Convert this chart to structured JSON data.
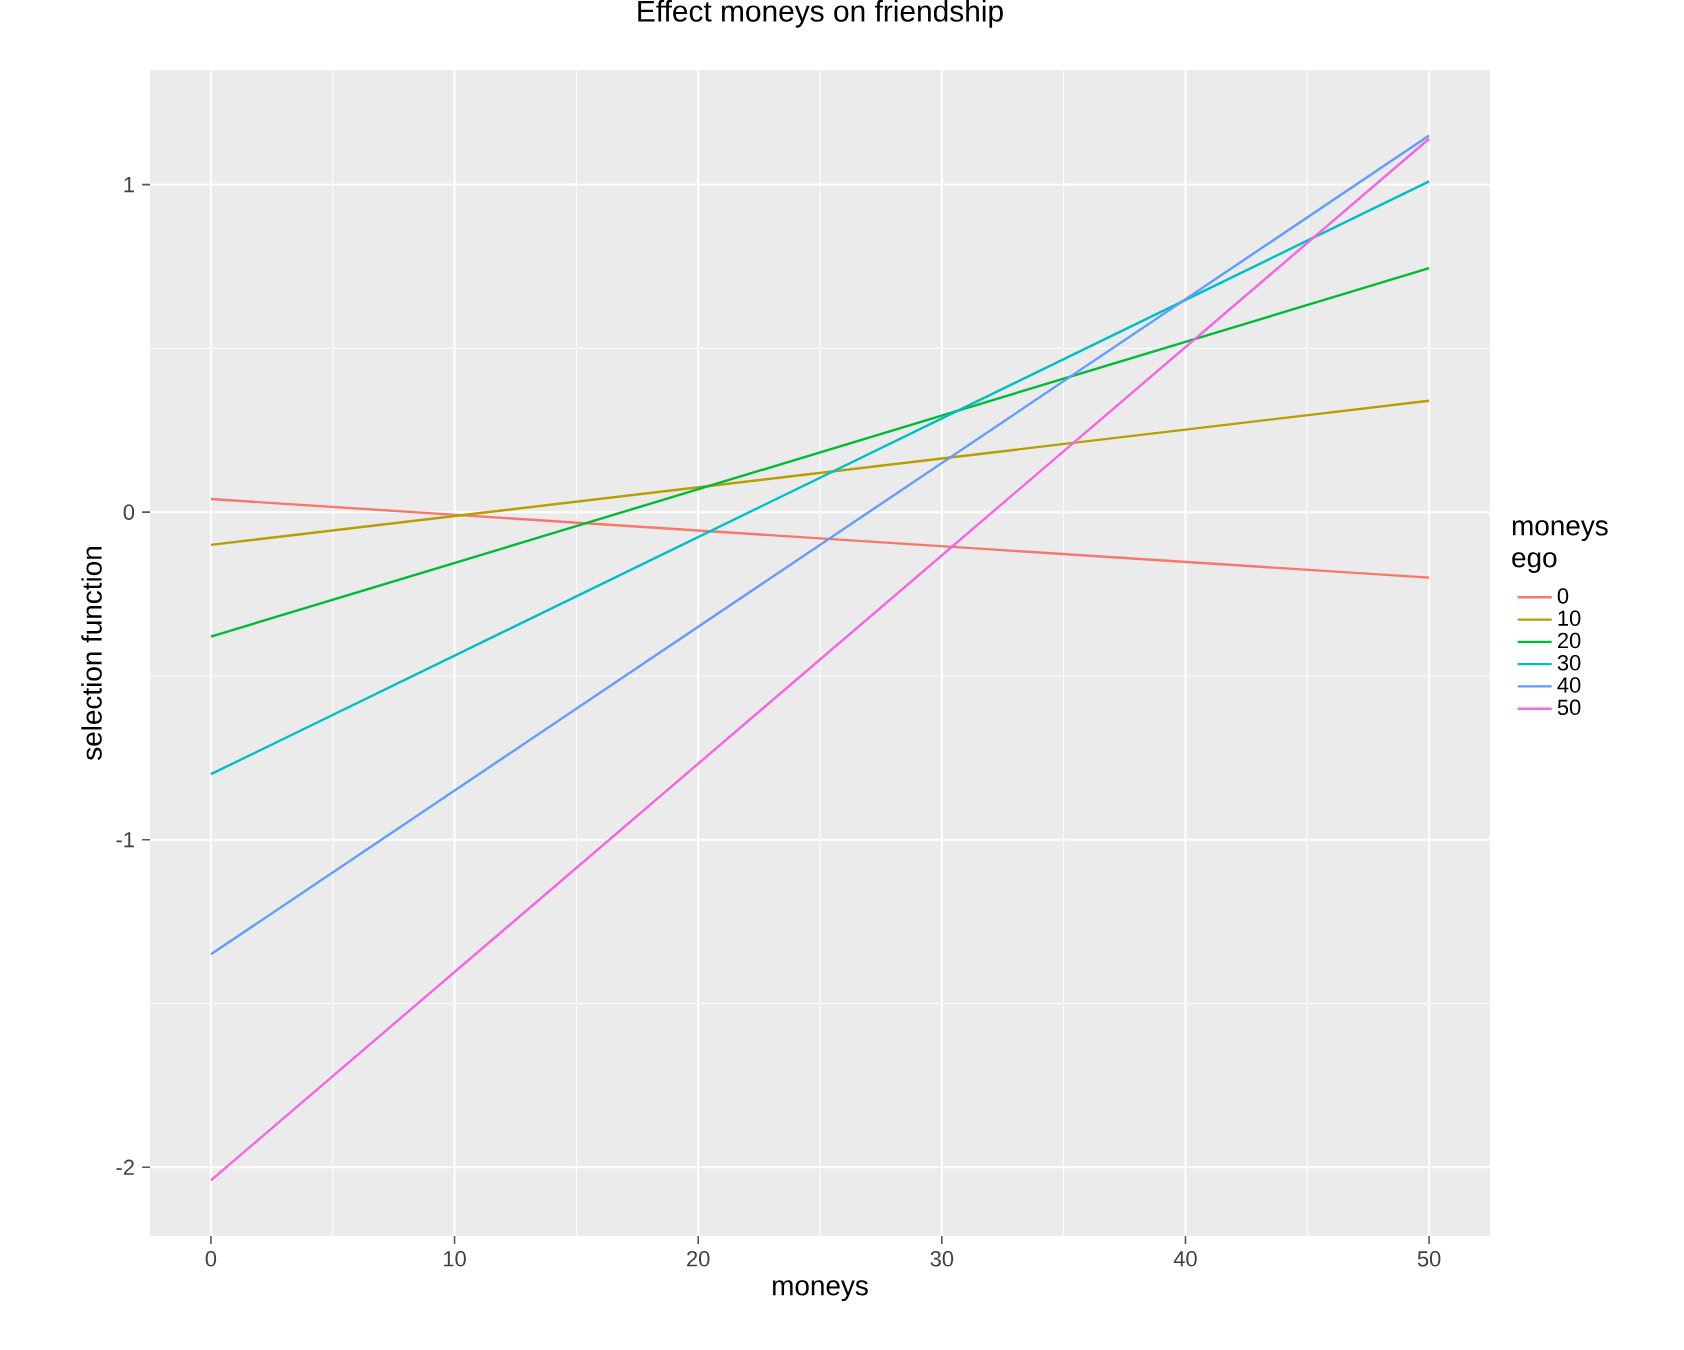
{
  "chart_data": {
    "type": "line",
    "title": "Effect moneys on friendship",
    "xlabel": "moneys",
    "ylabel": "selection function",
    "legend_title": "moneys ego",
    "x": [
      0,
      50
    ],
    "series": [
      {
        "name": "0",
        "color": "#F8766D",
        "values": [
          0.04,
          -0.2
        ]
      },
      {
        "name": "10",
        "color": "#B79F00",
        "values": [
          -0.1,
          0.34
        ]
      },
      {
        "name": "20",
        "color": "#00BA38",
        "values": [
          -0.38,
          0.745
        ]
      },
      {
        "name": "30",
        "color": "#00BFC4",
        "values": [
          -0.8,
          1.01
        ]
      },
      {
        "name": "40",
        "color": "#619CFF",
        "values": [
          -1.35,
          1.15
        ]
      },
      {
        "name": "50",
        "color": "#F564E3",
        "values": [
          -2.04,
          1.14
        ]
      }
    ],
    "xlim": [
      -2.5,
      52.5
    ],
    "ylim": [
      -2.21,
      1.35
    ],
    "xticks": [
      0,
      10,
      20,
      30,
      40,
      50
    ],
    "yticks": [
      -2,
      -1,
      0,
      1
    ],
    "grid": true,
    "legend": "right",
    "marker": "none",
    "line_style": "solid"
  }
}
